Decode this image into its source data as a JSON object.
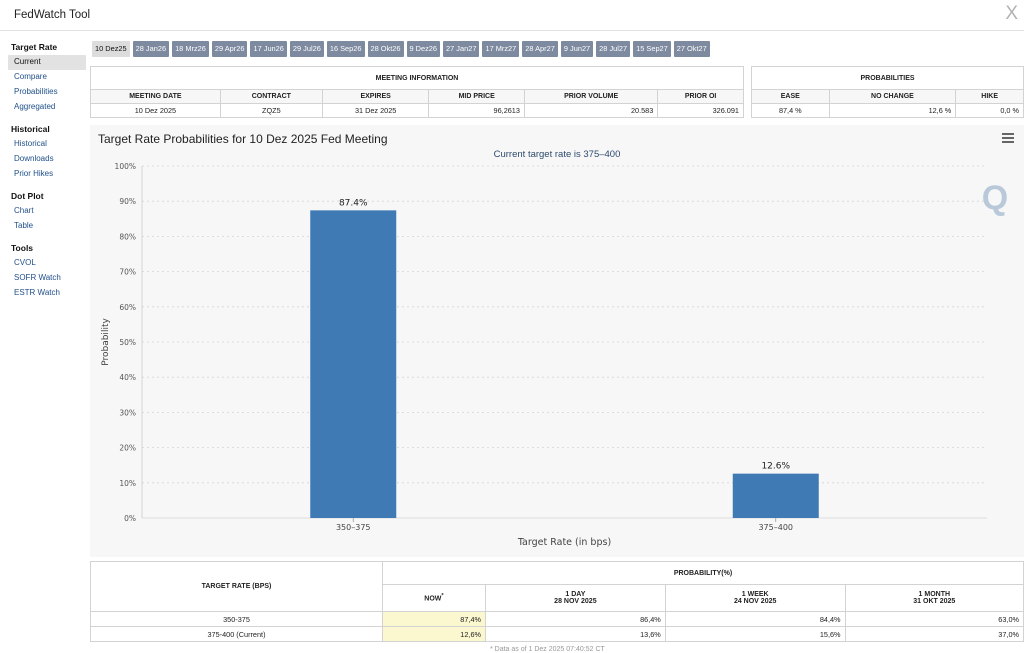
{
  "window": {
    "title": "FedWatch Tool",
    "close_glyph": "X"
  },
  "sidebar": {
    "groups": [
      {
        "heading": "Target Rate",
        "items": [
          "Current",
          "Compare",
          "Probabilities",
          "Aggregated"
        ]
      },
      {
        "heading": "Historical",
        "items": [
          "Historical",
          "Downloads",
          "Prior Hikes"
        ]
      },
      {
        "heading": "Dot Plot",
        "items": [
          "Chart",
          "Table"
        ]
      },
      {
        "heading": "Tools",
        "items": [
          "CVOL",
          "SOFR Watch",
          "ESTR Watch"
        ]
      }
    ],
    "active_item": "Current"
  },
  "tabs": [
    "10 Dez25",
    "28 Jan26",
    "18 Mrz26",
    "29 Apr26",
    "17 Jun26",
    "29 Jul26",
    "16 Sep26",
    "28 Okt26",
    "9 Dez26",
    "27 Jan27",
    "17 Mrz27",
    "28 Apr27",
    "9 Jun27",
    "28 Jul27",
    "15 Sep27",
    "27 Okt27"
  ],
  "active_tab": "10 Dez25",
  "meeting": {
    "header": "MEETING INFORMATION",
    "columns": [
      "MEETING DATE",
      "CONTRACT",
      "EXPIRES",
      "MID PRICE",
      "PRIOR VOLUME",
      "PRIOR OI"
    ],
    "row": [
      "10 Dez 2025",
      "ZQZ5",
      "31 Dez 2025",
      "96,2613",
      "20.583",
      "326.091"
    ]
  },
  "probabilities": {
    "header": "PROBABILITIES",
    "columns": [
      "EASE",
      "NO CHANGE",
      "HIKE"
    ],
    "row": [
      "87,4 %",
      "12,6 %",
      "0,0 %"
    ]
  },
  "chart_data": {
    "type": "bar",
    "title": "Target Rate Probabilities for 10 Dez 2025 Fed Meeting",
    "subtitle": "Current target rate is 375–400",
    "categories": [
      "350–375",
      "375–400"
    ],
    "values": [
      87.4,
      12.6
    ],
    "data_labels": [
      "87.4%",
      "12.6%"
    ],
    "xlabel": "Target Rate (in bps)",
    "ylabel": "Probability",
    "ylim": [
      0,
      100
    ],
    "yticks": [
      "0%",
      "10%",
      "20%",
      "30%",
      "40%",
      "50%",
      "60%",
      "70%",
      "80%",
      "90%",
      "100%"
    ],
    "bar_color": "#3f7ab5",
    "grid": "dashed horizontal",
    "legend": "none",
    "watermark": "Q"
  },
  "bottom_table": {
    "left_header": "TARGET RATE (BPS)",
    "group_header": "PROBABILITY(%)",
    "columns": [
      {
        "line1": "NOW",
        "line2": "",
        "marker": "*"
      },
      {
        "line1": "1 DAY",
        "line2": "28 NOV 2025"
      },
      {
        "line1": "1 WEEK",
        "line2": "24 NOV 2025"
      },
      {
        "line1": "1 MONTH",
        "line2": "31 OKT 2025"
      }
    ],
    "rows": [
      {
        "rate": "350-375",
        "now": "87,4%",
        "day": "86,4%",
        "week": "84,4%",
        "month": "63,0%"
      },
      {
        "rate": "375-400 (Current)",
        "now": "12,6%",
        "day": "13,6%",
        "week": "15,6%",
        "month": "37,0%"
      }
    ],
    "footnote": "* Data as of 1 Dez 2025 07:40:52 CT"
  },
  "colors": {
    "tab_bg": "#7d8aa0",
    "tab_active_bg": "#dcdcdc",
    "now_cell": "#fbf7cf",
    "link": "#1f4f8a"
  }
}
